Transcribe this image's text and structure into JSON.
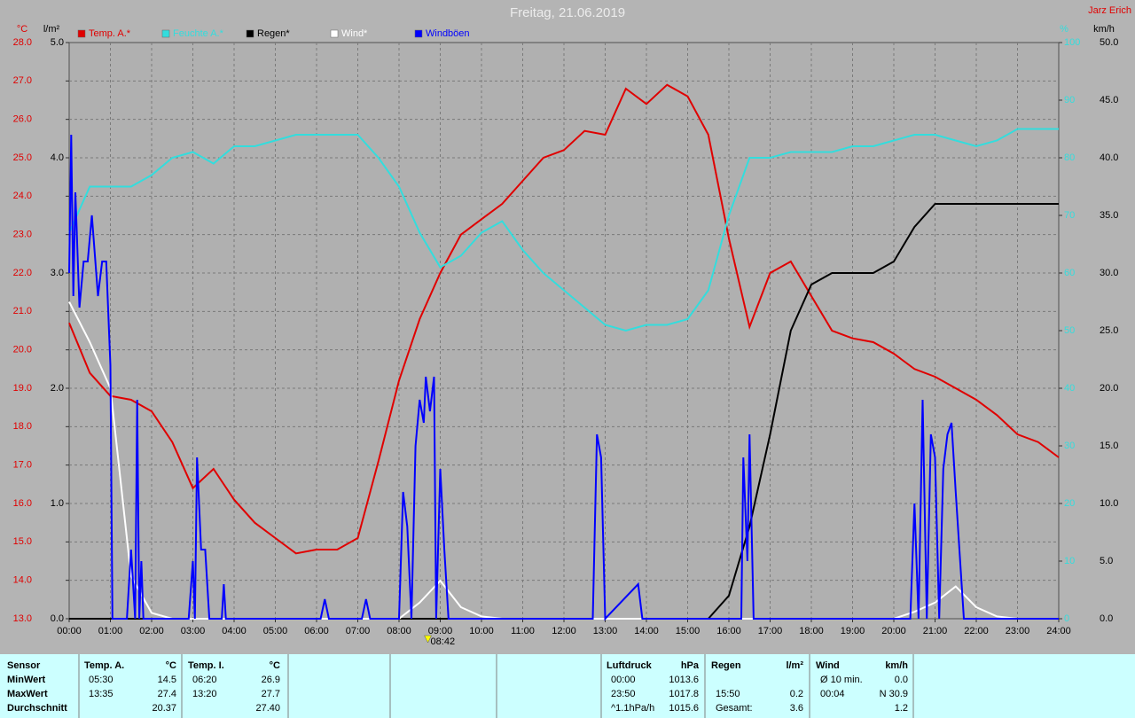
{
  "chart_data": {
    "type": "line",
    "title": "Freitag, 21.06.2019",
    "author": "Jarz Erich",
    "x": [
      0,
      0.5,
      1,
      1.5,
      2,
      2.5,
      3,
      3.5,
      4,
      4.5,
      5,
      5.5,
      6,
      6.5,
      7,
      7.5,
      8,
      8.5,
      9,
      9.5,
      10,
      10.5,
      11,
      11.5,
      12,
      12.5,
      13,
      13.5,
      14,
      14.5,
      15,
      15.5,
      16,
      16.5,
      17,
      17.5,
      18,
      18.5,
      19,
      19.5,
      20,
      20.5,
      21,
      21.5,
      22,
      22.5,
      23,
      23.5,
      24
    ],
    "xlim": [
      0,
      24
    ],
    "xticks": [
      {
        "value": 0,
        "label": "00:00"
      },
      {
        "value": 1,
        "label": "01:00"
      },
      {
        "value": 2,
        "label": "02:00"
      },
      {
        "value": 3,
        "label": "03:00"
      },
      {
        "value": 4,
        "label": "04:00"
      },
      {
        "value": 5,
        "label": "05:00"
      },
      {
        "value": 6,
        "label": "06:00"
      },
      {
        "value": 7,
        "label": "07:00"
      },
      {
        "value": 8,
        "label": "08:00"
      },
      {
        "value": 9,
        "label": "09:00"
      },
      {
        "value": 10,
        "label": "10:00"
      },
      {
        "value": 11,
        "label": "11:00"
      },
      {
        "value": 12,
        "label": "12:00"
      },
      {
        "value": 13,
        "label": "13:00"
      },
      {
        "value": 14,
        "label": "14:00"
      },
      {
        "value": 15,
        "label": "15:00"
      },
      {
        "value": 16,
        "label": "16:00"
      },
      {
        "value": 17,
        "label": "17:00"
      },
      {
        "value": 18,
        "label": "18:00"
      },
      {
        "value": 19,
        "label": "19:00"
      },
      {
        "value": 20,
        "label": "20:00"
      },
      {
        "value": 21,
        "label": "21:00"
      },
      {
        "value": 22,
        "label": "22:00"
      },
      {
        "value": 23,
        "label": "23:00"
      },
      {
        "value": 24,
        "label": "24:00"
      }
    ],
    "grid": true,
    "axes": [
      {
        "id": "temp",
        "label": "°C",
        "color": "#e00000",
        "side": "left",
        "lim": [
          13,
          28
        ],
        "ticks": [
          {
            "value": 13,
            "label": "13.0"
          },
          {
            "value": 14,
            "label": "14.0"
          },
          {
            "value": 15,
            "label": "15.0"
          },
          {
            "value": 16,
            "label": "16.0"
          },
          {
            "value": 17,
            "label": "17.0"
          },
          {
            "value": 18,
            "label": "18.0"
          },
          {
            "value": 19,
            "label": "19.0"
          },
          {
            "value": 20,
            "label": "20.0"
          },
          {
            "value": 21,
            "label": "21.0"
          },
          {
            "value": 22,
            "label": "22.0"
          },
          {
            "value": 23,
            "label": "23.0"
          },
          {
            "value": 24,
            "label": "24.0"
          },
          {
            "value": 25,
            "label": "25.0"
          },
          {
            "value": 26,
            "label": "26.0"
          },
          {
            "value": 27,
            "label": "27.0"
          },
          {
            "value": 28,
            "label": "28.0"
          }
        ]
      },
      {
        "id": "rain",
        "label": "l/m²",
        "color": "#000000",
        "side": "left",
        "lim": [
          0,
          5
        ],
        "ticks": [
          {
            "value": 0,
            "label": "0.0"
          },
          {
            "value": 1,
            "label": "1.0"
          },
          {
            "value": 2,
            "label": "2.0"
          },
          {
            "value": 3,
            "label": "3.0"
          },
          {
            "value": 4,
            "label": "4.0"
          },
          {
            "value": 5,
            "label": "5.0"
          }
        ]
      },
      {
        "id": "hum",
        "label": "%",
        "color": "#33dddd",
        "side": "right",
        "lim": [
          0,
          100
        ],
        "ticks": [
          0,
          10,
          20,
          30,
          40,
          50,
          60,
          70,
          80,
          90,
          100
        ]
      },
      {
        "id": "wind",
        "label": "km/h",
        "color": "#000000",
        "side": "right",
        "lim": [
          0,
          50
        ],
        "ticks": [
          {
            "value": 0,
            "label": "0.0"
          },
          {
            "value": 5,
            "label": "5.0"
          },
          {
            "value": 10,
            "label": "10.0"
          },
          {
            "value": 15,
            "label": "15.0"
          },
          {
            "value": 20,
            "label": "20.0"
          },
          {
            "value": 25,
            "label": "25.0"
          },
          {
            "value": 30,
            "label": "30.0"
          },
          {
            "value": 35,
            "label": "35.0"
          },
          {
            "value": 40,
            "label": "40.0"
          },
          {
            "value": 45,
            "label": "45.0"
          },
          {
            "value": 50,
            "label": "50.0"
          }
        ]
      }
    ],
    "series": [
      {
        "name": "Temp. A.*",
        "color": "#e00000",
        "axis": "temp",
        "values": [
          20.7,
          19.4,
          18.8,
          18.7,
          18.4,
          17.6,
          16.4,
          16.9,
          16.1,
          15.5,
          15.1,
          14.7,
          14.8,
          14.8,
          15.1,
          17.1,
          19.2,
          20.8,
          22.0,
          23.0,
          23.4,
          23.8,
          24.4,
          25.0,
          25.2,
          25.7,
          25.6,
          26.8,
          26.4,
          26.9,
          26.6,
          25.6,
          22.9,
          20.6,
          22.0,
          22.3,
          21.4,
          20.5,
          20.3,
          20.2,
          19.9,
          19.5,
          19.3,
          19.0,
          18.7,
          18.3,
          17.8,
          17.6,
          17.2
        ]
      },
      {
        "name": "Feuchte A.*",
        "color": "#33dddd",
        "axis": "hum",
        "values": [
          67,
          75,
          75,
          75,
          77,
          80,
          81,
          79,
          82,
          82,
          83,
          84,
          84,
          84,
          84,
          80,
          75,
          67,
          61,
          63,
          67,
          69,
          64,
          60,
          57,
          54,
          51,
          50,
          51,
          51,
          52,
          57,
          70,
          80,
          80,
          81,
          81,
          81,
          82,
          82,
          83,
          84,
          84,
          83,
          82,
          83,
          85,
          85,
          85
        ]
      },
      {
        "name": "Regen*",
        "color": "#000000",
        "axis": "rain",
        "values": [
          0,
          0,
          0,
          0,
          0,
          0,
          0,
          0,
          0,
          0,
          0,
          0,
          0,
          0,
          0,
          0,
          0,
          0,
          0,
          0,
          0,
          0,
          0,
          0,
          0,
          0,
          0,
          0,
          0,
          0,
          0,
          0,
          0.2,
          0.8,
          1.6,
          2.5,
          2.9,
          3.0,
          3.0,
          3.0,
          3.1,
          3.4,
          3.6,
          3.6,
          3.6,
          3.6,
          3.6,
          3.6,
          3.6
        ]
      },
      {
        "name": "Wind*",
        "color": "#ffffff",
        "axis": "wind",
        "values": [
          27.5,
          24,
          20,
          3.7,
          0.5,
          0,
          0,
          0,
          0,
          0,
          0,
          0,
          0,
          0,
          0,
          0,
          0,
          1.4,
          3.3,
          1.0,
          0.2,
          0,
          0,
          0,
          0,
          0,
          0,
          0,
          0,
          0,
          0,
          0,
          0,
          0,
          0,
          0,
          0,
          0,
          0,
          0,
          0,
          0.6,
          1.4,
          2.8,
          1.0,
          0.2,
          0,
          0,
          0
        ]
      },
      {
        "name": "Windböen",
        "color": "#0000ff",
        "axis": "wind",
        "x": [
          0,
          0.05,
          0.1,
          0.15,
          0.25,
          0.35,
          0.45,
          0.55,
          0.7,
          0.8,
          0.9,
          1.0,
          1.05,
          1.4,
          1.5,
          1.6,
          1.65,
          1.7,
          1.75,
          1.8,
          2.9,
          3.0,
          3.05,
          3.1,
          3.2,
          3.3,
          3.4,
          3.7,
          3.75,
          3.8,
          6.1,
          6.2,
          6.3,
          7.1,
          7.2,
          7.3,
          8.0,
          8.1,
          8.2,
          8.3,
          8.4,
          8.5,
          8.6,
          8.65,
          8.75,
          8.85,
          8.9,
          9.0,
          9.1,
          9.2,
          12.7,
          12.8,
          12.9,
          13.0,
          13.8,
          13.9,
          16.3,
          16.35,
          16.45,
          16.5,
          16.6,
          20.4,
          20.5,
          20.6,
          20.7,
          20.8,
          20.9,
          21.0,
          21.1,
          21.2,
          21.3,
          21.4,
          21.5,
          21.7,
          24
        ],
        "values": [
          30,
          42,
          28,
          37,
          27,
          31,
          31,
          35,
          28,
          31,
          31,
          22,
          0,
          0,
          6,
          0,
          19,
          0,
          5,
          0,
          0,
          5,
          0,
          14,
          6,
          6,
          0,
          0,
          3,
          0,
          0,
          1.7,
          0,
          0,
          1.7,
          0,
          0,
          11,
          8,
          0,
          15,
          19,
          17,
          21,
          18,
          21,
          0,
          13,
          6,
          0,
          0,
          16,
          14,
          0,
          3,
          0,
          0,
          14,
          5,
          16,
          0,
          0,
          10,
          0,
          19,
          0,
          16,
          14,
          0,
          13,
          16,
          17,
          11,
          0,
          0
        ]
      }
    ],
    "annotation": {
      "x": 8.7,
      "label": "08:42"
    }
  },
  "table": {
    "row_labels": [
      "Sensor",
      "MinWert",
      "MaxWert",
      "Durchschnitt"
    ],
    "groups": [
      {
        "name": "Temp. A.",
        "unit": "°C",
        "cells": [
          [
            "05:30",
            "14.5"
          ],
          [
            "13:35",
            "27.4"
          ],
          [
            null,
            "20.37"
          ]
        ]
      },
      {
        "name": "Temp. I.",
        "unit": "°C",
        "cells": [
          [
            "06:20",
            "26.9"
          ],
          [
            "13:20",
            "27.7"
          ],
          [
            null,
            "27.40"
          ]
        ]
      },
      {
        "name": "Luftdruck",
        "unit": "hPa",
        "cells": [
          [
            "00:00",
            "1013.6"
          ],
          [
            "23:50",
            "1017.8"
          ],
          [
            "^1.1hPa/h",
            "1015.6"
          ]
        ]
      },
      {
        "name": "Regen",
        "unit": "l/m²",
        "cells": [
          [
            null,
            null
          ],
          [
            "15:50",
            "0.2"
          ],
          [
            "Gesamt:",
            "3.6"
          ]
        ]
      },
      {
        "name": "Wind",
        "unit": "km/h",
        "cells": [
          [
            "Ø 10 min.",
            "0.0"
          ],
          [
            "00:04",
            "N 30.9"
          ],
          [
            null,
            "1.2"
          ]
        ]
      }
    ]
  }
}
